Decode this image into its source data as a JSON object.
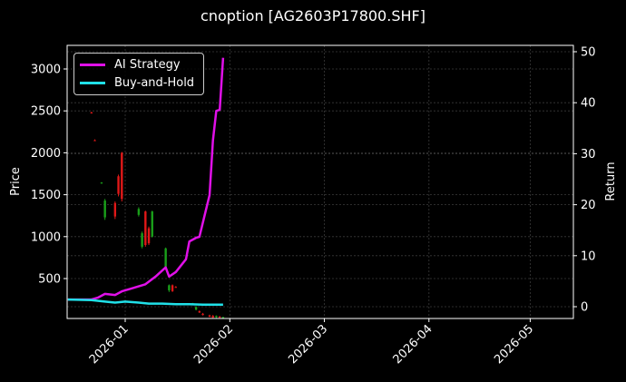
{
  "chart_title": "cnoption [AG2603P17800.SHF]",
  "colors": {
    "background": "#000000",
    "ai_strategy": "#e010e8",
    "buy_and_hold": "#20e0e8",
    "candle_up": "#1aa01a",
    "candle_down": "#e01818",
    "grid": "#444444",
    "axis": "#ffffff"
  },
  "legend": {
    "items": [
      {
        "label": "AI Strategy",
        "color": "#e010e8"
      },
      {
        "label": "Buy-and-Hold",
        "color": "#20e0e8"
      }
    ]
  },
  "axes": {
    "left_label": "Price",
    "right_label": "Return",
    "left_ticks": [
      "500",
      "1000",
      "1500",
      "2000",
      "2500",
      "3000"
    ],
    "right_ticks": [
      "0",
      "10",
      "20",
      "30",
      "40",
      "50"
    ],
    "x_ticks": [
      "2026-01",
      "2026-02",
      "2026-03",
      "2026-04",
      "2026-05"
    ]
  },
  "chart_data": {
    "type": "line",
    "title": "cnoption [AG2603P17800.SHF]",
    "xlabel": "",
    "ylabel": "Price",
    "y2label": "Return",
    "xlim": [
      "2025-12-15",
      "2026-05-13"
    ],
    "ylim": [
      0,
      3250
    ],
    "y2lim": [
      -2.3,
      51
    ],
    "x_ticks": [
      "2026-01",
      "2026-02",
      "2026-03",
      "2026-04",
      "2026-05"
    ],
    "y_ticks": [
      500,
      1000,
      1500,
      2000,
      2500,
      3000
    ],
    "y2_ticks": [
      0,
      10,
      20,
      30,
      40,
      50
    ],
    "grid": true,
    "legend_position": "upper left",
    "candlesticks": [
      {
        "date": "2025-12-22",
        "open": 2480,
        "high": 2490,
        "low": 2470,
        "close": 2475,
        "dir": "down"
      },
      {
        "date": "2025-12-23",
        "open": 2150,
        "high": 2160,
        "low": 2140,
        "close": 2145,
        "dir": "down"
      },
      {
        "date": "2025-12-25",
        "open": 1640,
        "high": 1650,
        "low": 1630,
        "close": 1645,
        "dir": "up"
      },
      {
        "date": "2025-12-26",
        "open": 1230,
        "high": 1450,
        "low": 1200,
        "close": 1430,
        "dir": "up"
      },
      {
        "date": "2025-12-29",
        "open": 1400,
        "high": 1420,
        "low": 1210,
        "close": 1240,
        "dir": "down"
      },
      {
        "date": "2025-12-30",
        "open": 1720,
        "high": 1740,
        "low": 1480,
        "close": 1510,
        "dir": "down"
      },
      {
        "date": "2025-12-31",
        "open": 2000,
        "high": 2010,
        "low": 1420,
        "close": 1450,
        "dir": "down"
      },
      {
        "date": "2026-01-05",
        "open": 1260,
        "high": 1350,
        "low": 1240,
        "close": 1330,
        "dir": "up"
      },
      {
        "date": "2026-01-06",
        "open": 880,
        "high": 1060,
        "low": 860,
        "close": 1040,
        "dir": "up"
      },
      {
        "date": "2026-01-07",
        "open": 1300,
        "high": 1310,
        "low": 880,
        "close": 900,
        "dir": "down"
      },
      {
        "date": "2026-01-08",
        "open": 1100,
        "high": 1120,
        "low": 900,
        "close": 920,
        "dir": "down"
      },
      {
        "date": "2026-01-09",
        "open": 1000,
        "high": 1310,
        "low": 990,
        "close": 1300,
        "dir": "up"
      },
      {
        "date": "2026-01-13",
        "open": 640,
        "high": 870,
        "low": 620,
        "close": 860,
        "dir": "up"
      },
      {
        "date": "2026-01-14",
        "open": 360,
        "high": 430,
        "low": 340,
        "close": 420,
        "dir": "up"
      },
      {
        "date": "2026-01-15",
        "open": 420,
        "high": 430,
        "low": 340,
        "close": 350,
        "dir": "down"
      },
      {
        "date": "2026-01-16",
        "open": 400,
        "high": 410,
        "low": 390,
        "close": 395,
        "dir": "down"
      },
      {
        "date": "2026-01-21",
        "open": 200,
        "high": 210,
        "low": 190,
        "close": 205,
        "dir": "up"
      },
      {
        "date": "2026-01-22",
        "open": 130,
        "high": 170,
        "low": 120,
        "close": 160,
        "dir": "up"
      },
      {
        "date": "2026-01-23",
        "open": 110,
        "high": 120,
        "low": 90,
        "close": 95,
        "dir": "down"
      },
      {
        "date": "2026-01-24",
        "open": 80,
        "high": 90,
        "low": 60,
        "close": 65,
        "dir": "down"
      },
      {
        "date": "2026-01-26",
        "open": 60,
        "high": 70,
        "low": 40,
        "close": 45,
        "dir": "down"
      },
      {
        "date": "2026-01-27",
        "open": 55,
        "high": 65,
        "low": 30,
        "close": 35,
        "dir": "down"
      },
      {
        "date": "2026-01-28",
        "open": 40,
        "high": 60,
        "low": 30,
        "close": 55,
        "dir": "up"
      },
      {
        "date": "2026-01-29",
        "open": 45,
        "high": 55,
        "low": 30,
        "close": 35,
        "dir": "down"
      },
      {
        "date": "2026-01-30",
        "open": 30,
        "high": 45,
        "low": 25,
        "close": 40,
        "dir": "up"
      }
    ],
    "series": [
      {
        "name": "AI Strategy",
        "axis": "right",
        "color": "#e010e8",
        "x": [
          "2025-12-15",
          "2025-12-22",
          "2025-12-24",
          "2025-12-26",
          "2025-12-29",
          "2025-12-31",
          "2026-01-03",
          "2026-01-07",
          "2026-01-10",
          "2026-01-13",
          "2026-01-14",
          "2026-01-16",
          "2026-01-19",
          "2026-01-20",
          "2026-01-22",
          "2026-01-23",
          "2026-01-26",
          "2026-01-27",
          "2026-01-28",
          "2026-01-29",
          "2026-01-30"
        ],
        "values": [
          1.4,
          1.4,
          1.8,
          2.5,
          2.3,
          3.0,
          3.6,
          4.4,
          5.9,
          7.7,
          5.9,
          6.8,
          9.3,
          12.8,
          13.5,
          13.7,
          21.9,
          32.6,
          38.4,
          38.6,
          48.8
        ]
      },
      {
        "name": "Buy-and-Hold",
        "axis": "right",
        "color": "#20e0e8",
        "x": [
          "2025-12-15",
          "2025-12-22",
          "2025-12-26",
          "2025-12-29",
          "2026-01-01",
          "2026-01-05",
          "2026-01-08",
          "2026-01-12",
          "2026-01-16",
          "2026-01-20",
          "2026-01-24",
          "2026-01-30"
        ],
        "values": [
          1.4,
          1.3,
          1.0,
          0.8,
          1.0,
          0.8,
          0.6,
          0.6,
          0.5,
          0.5,
          0.4,
          0.4
        ]
      }
    ]
  }
}
